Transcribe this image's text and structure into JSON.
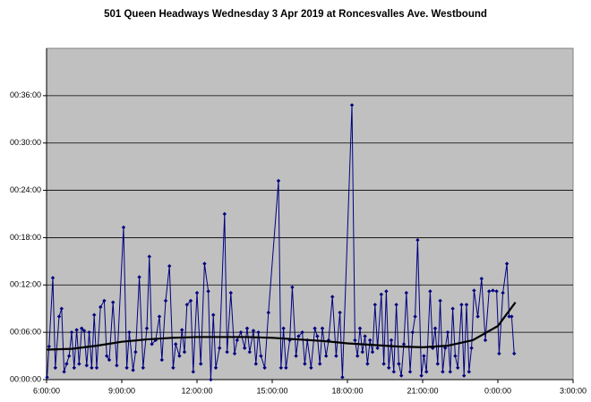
{
  "chart_data": {
    "type": "line",
    "title": "501 Queen Headways Wednesday 3 Apr 2019 at Roncesvalles Ave. Westbound",
    "xlim": [
      6,
      27
    ],
    "xticks": [
      {
        "value": 6,
        "label": "6:00:00"
      },
      {
        "value": 9,
        "label": "9:00:00"
      },
      {
        "value": 12,
        "label": "12:00:00"
      },
      {
        "value": 15,
        "label": "15:00:00"
      },
      {
        "value": 18,
        "label": "18:00:00"
      },
      {
        "value": 21,
        "label": "21:00:00"
      },
      {
        "value": 24,
        "label": "0:00:00"
      },
      {
        "value": 27,
        "label": "3:00:00"
      }
    ],
    "ylim": [
      0,
      42
    ],
    "yticks": [
      {
        "value": 0,
        "label": "00:00:00"
      },
      {
        "value": 6,
        "label": "00:06:00"
      },
      {
        "value": 12,
        "label": "00:12:00"
      },
      {
        "value": 18,
        "label": "00:18:00"
      },
      {
        "value": 24,
        "label": "00:24:00"
      },
      {
        "value": 30,
        "label": "00:30:00"
      },
      {
        "value": 36,
        "label": "00:36:00"
      }
    ],
    "grid": true,
    "series": [
      {
        "color": "#000080",
        "marker": "diamond",
        "x": [
          6.02,
          6.1,
          6.25,
          6.35,
          6.5,
          6.6,
          6.7,
          6.8,
          6.9,
          7.0,
          7.1,
          7.2,
          7.3,
          7.4,
          7.5,
          7.6,
          7.7,
          7.8,
          7.9,
          8.0,
          8.15,
          8.3,
          8.4,
          8.5,
          8.65,
          8.8,
          9.07,
          9.2,
          9.3,
          9.45,
          9.55,
          9.7,
          9.85,
          10.0,
          10.1,
          10.2,
          10.35,
          10.5,
          10.6,
          10.75,
          10.9,
          11.05,
          11.15,
          11.3,
          11.4,
          11.5,
          11.6,
          11.75,
          11.85,
          12.0,
          12.15,
          12.3,
          12.45,
          12.55,
          12.65,
          12.75,
          12.9,
          13.1,
          13.2,
          13.35,
          13.5,
          13.6,
          13.75,
          13.9,
          14.0,
          14.1,
          14.25,
          14.35,
          14.45,
          14.55,
          14.7,
          14.85,
          15.25,
          15.35,
          15.45,
          15.55,
          15.7,
          15.8,
          15.95,
          16.05,
          16.2,
          16.3,
          16.4,
          16.55,
          16.7,
          16.8,
          16.9,
          17.0,
          17.15,
          17.25,
          17.4,
          17.55,
          17.7,
          17.8,
          18.18,
          18.3,
          18.4,
          18.5,
          18.6,
          18.7,
          18.8,
          18.9,
          19.0,
          19.1,
          19.2,
          19.35,
          19.45,
          19.55,
          19.65,
          19.75,
          19.85,
          19.95,
          20.05,
          20.15,
          20.25,
          20.35,
          20.5,
          20.6,
          20.7,
          20.8,
          20.95,
          21.05,
          21.15,
          21.3,
          21.4,
          21.5,
          21.6,
          21.7,
          21.8,
          21.9,
          22.0,
          22.1,
          22.2,
          22.3,
          22.4,
          22.55,
          22.65,
          22.75,
          22.85,
          22.95,
          23.05,
          23.2,
          23.35,
          23.5,
          23.65,
          23.8,
          23.95,
          24.05,
          24.2,
          24.36,
          24.45,
          24.55,
          24.65
        ],
        "values": [
          0.3,
          4.2,
          12.9,
          1.5,
          8.0,
          9.0,
          1.0,
          2.0,
          3.0,
          6.0,
          1.5,
          6.3,
          2.0,
          6.5,
          6.2,
          1.8,
          6.0,
          1.5,
          8.2,
          1.5,
          9.2,
          10.0,
          3.0,
          2.5,
          9.8,
          1.8,
          19.3,
          1.5,
          6.0,
          1.2,
          3.5,
          13.0,
          1.5,
          6.5,
          15.6,
          4.5,
          5.0,
          8.0,
          2.5,
          10.0,
          14.4,
          1.5,
          4.5,
          3.0,
          6.3,
          3.5,
          9.5,
          10.0,
          1.0,
          11.0,
          2.0,
          14.7,
          11.2,
          0.0,
          8.2,
          1.5,
          4.0,
          21.0,
          3.5,
          11.0,
          3.3,
          5.0,
          6.0,
          4.0,
          6.5,
          3.5,
          6.2,
          2.0,
          6.0,
          3.0,
          1.5,
          8.5,
          25.2,
          1.5,
          6.5,
          1.5,
          5.0,
          11.7,
          3.0,
          5.5,
          6.0,
          2.0,
          5.0,
          1.5,
          6.5,
          5.5,
          2.0,
          6.5,
          3.0,
          5.0,
          10.5,
          3.0,
          8.5,
          0.3,
          34.8,
          5.0,
          3.0,
          6.5,
          3.5,
          5.5,
          2.0,
          5.0,
          3.5,
          9.5,
          4.0,
          10.8,
          2.0,
          11.2,
          1.5,
          5.0,
          1.0,
          9.5,
          2.0,
          0.5,
          4.5,
          11.0,
          1.0,
          6.0,
          8.0,
          17.7,
          0.5,
          3.0,
          1.0,
          11.2,
          4.0,
          6.5,
          2.0,
          10.0,
          1.0,
          4.0,
          6.0,
          1.0,
          9.0,
          3.0,
          1.5,
          9.5,
          0.5,
          9.5,
          1.0,
          4.0,
          11.3,
          8.0,
          12.8,
          5.0,
          11.2,
          11.3,
          11.2,
          3.3,
          11.0,
          14.7,
          8.0,
          8.0,
          3.3
        ]
      },
      {
        "color": "#000000",
        "x": [
          6,
          7,
          8,
          9,
          10,
          11,
          12,
          13,
          14,
          15,
          16,
          17,
          18,
          19,
          20,
          21,
          22,
          23,
          24,
          24.7
        ],
        "values": [
          3.8,
          3.9,
          4.3,
          4.8,
          5.1,
          5.3,
          5.4,
          5.4,
          5.4,
          5.3,
          5.1,
          4.9,
          4.6,
          4.4,
          4.2,
          4.1,
          4.3,
          5.0,
          6.8,
          9.8
        ]
      }
    ]
  }
}
